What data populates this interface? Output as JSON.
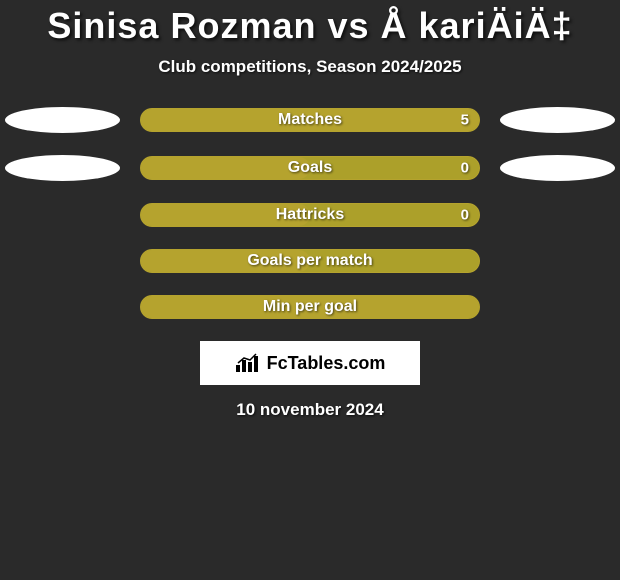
{
  "title": "Sinisa Rozman vs Å kariÄiÄ‡",
  "subtitle": "Club competitions, Season 2024/2025",
  "rows": [
    {
      "label": "Matches",
      "value": "5",
      "fill_pct": 100,
      "show_left_pill": true,
      "show_right_pill": true
    },
    {
      "label": "Goals",
      "value": "0",
      "fill_pct": 50,
      "show_left_pill": true,
      "show_right_pill": true
    },
    {
      "label": "Hattricks",
      "value": "0",
      "fill_pct": 50,
      "show_left_pill": false,
      "show_right_pill": false
    },
    {
      "label": "Goals per match",
      "value": "",
      "fill_pct": 50,
      "show_left_pill": false,
      "show_right_pill": false
    },
    {
      "label": "Min per goal",
      "value": "",
      "fill_pct": 100,
      "show_left_pill": false,
      "show_right_pill": false
    }
  ],
  "logo_text": "FcTables.com",
  "date": "10 november 2024",
  "colors": {
    "background": "#2a2a2a",
    "bar_fill": "#b5a32e",
    "bar_bg": "#aca02a",
    "pill": "#ffffff"
  }
}
